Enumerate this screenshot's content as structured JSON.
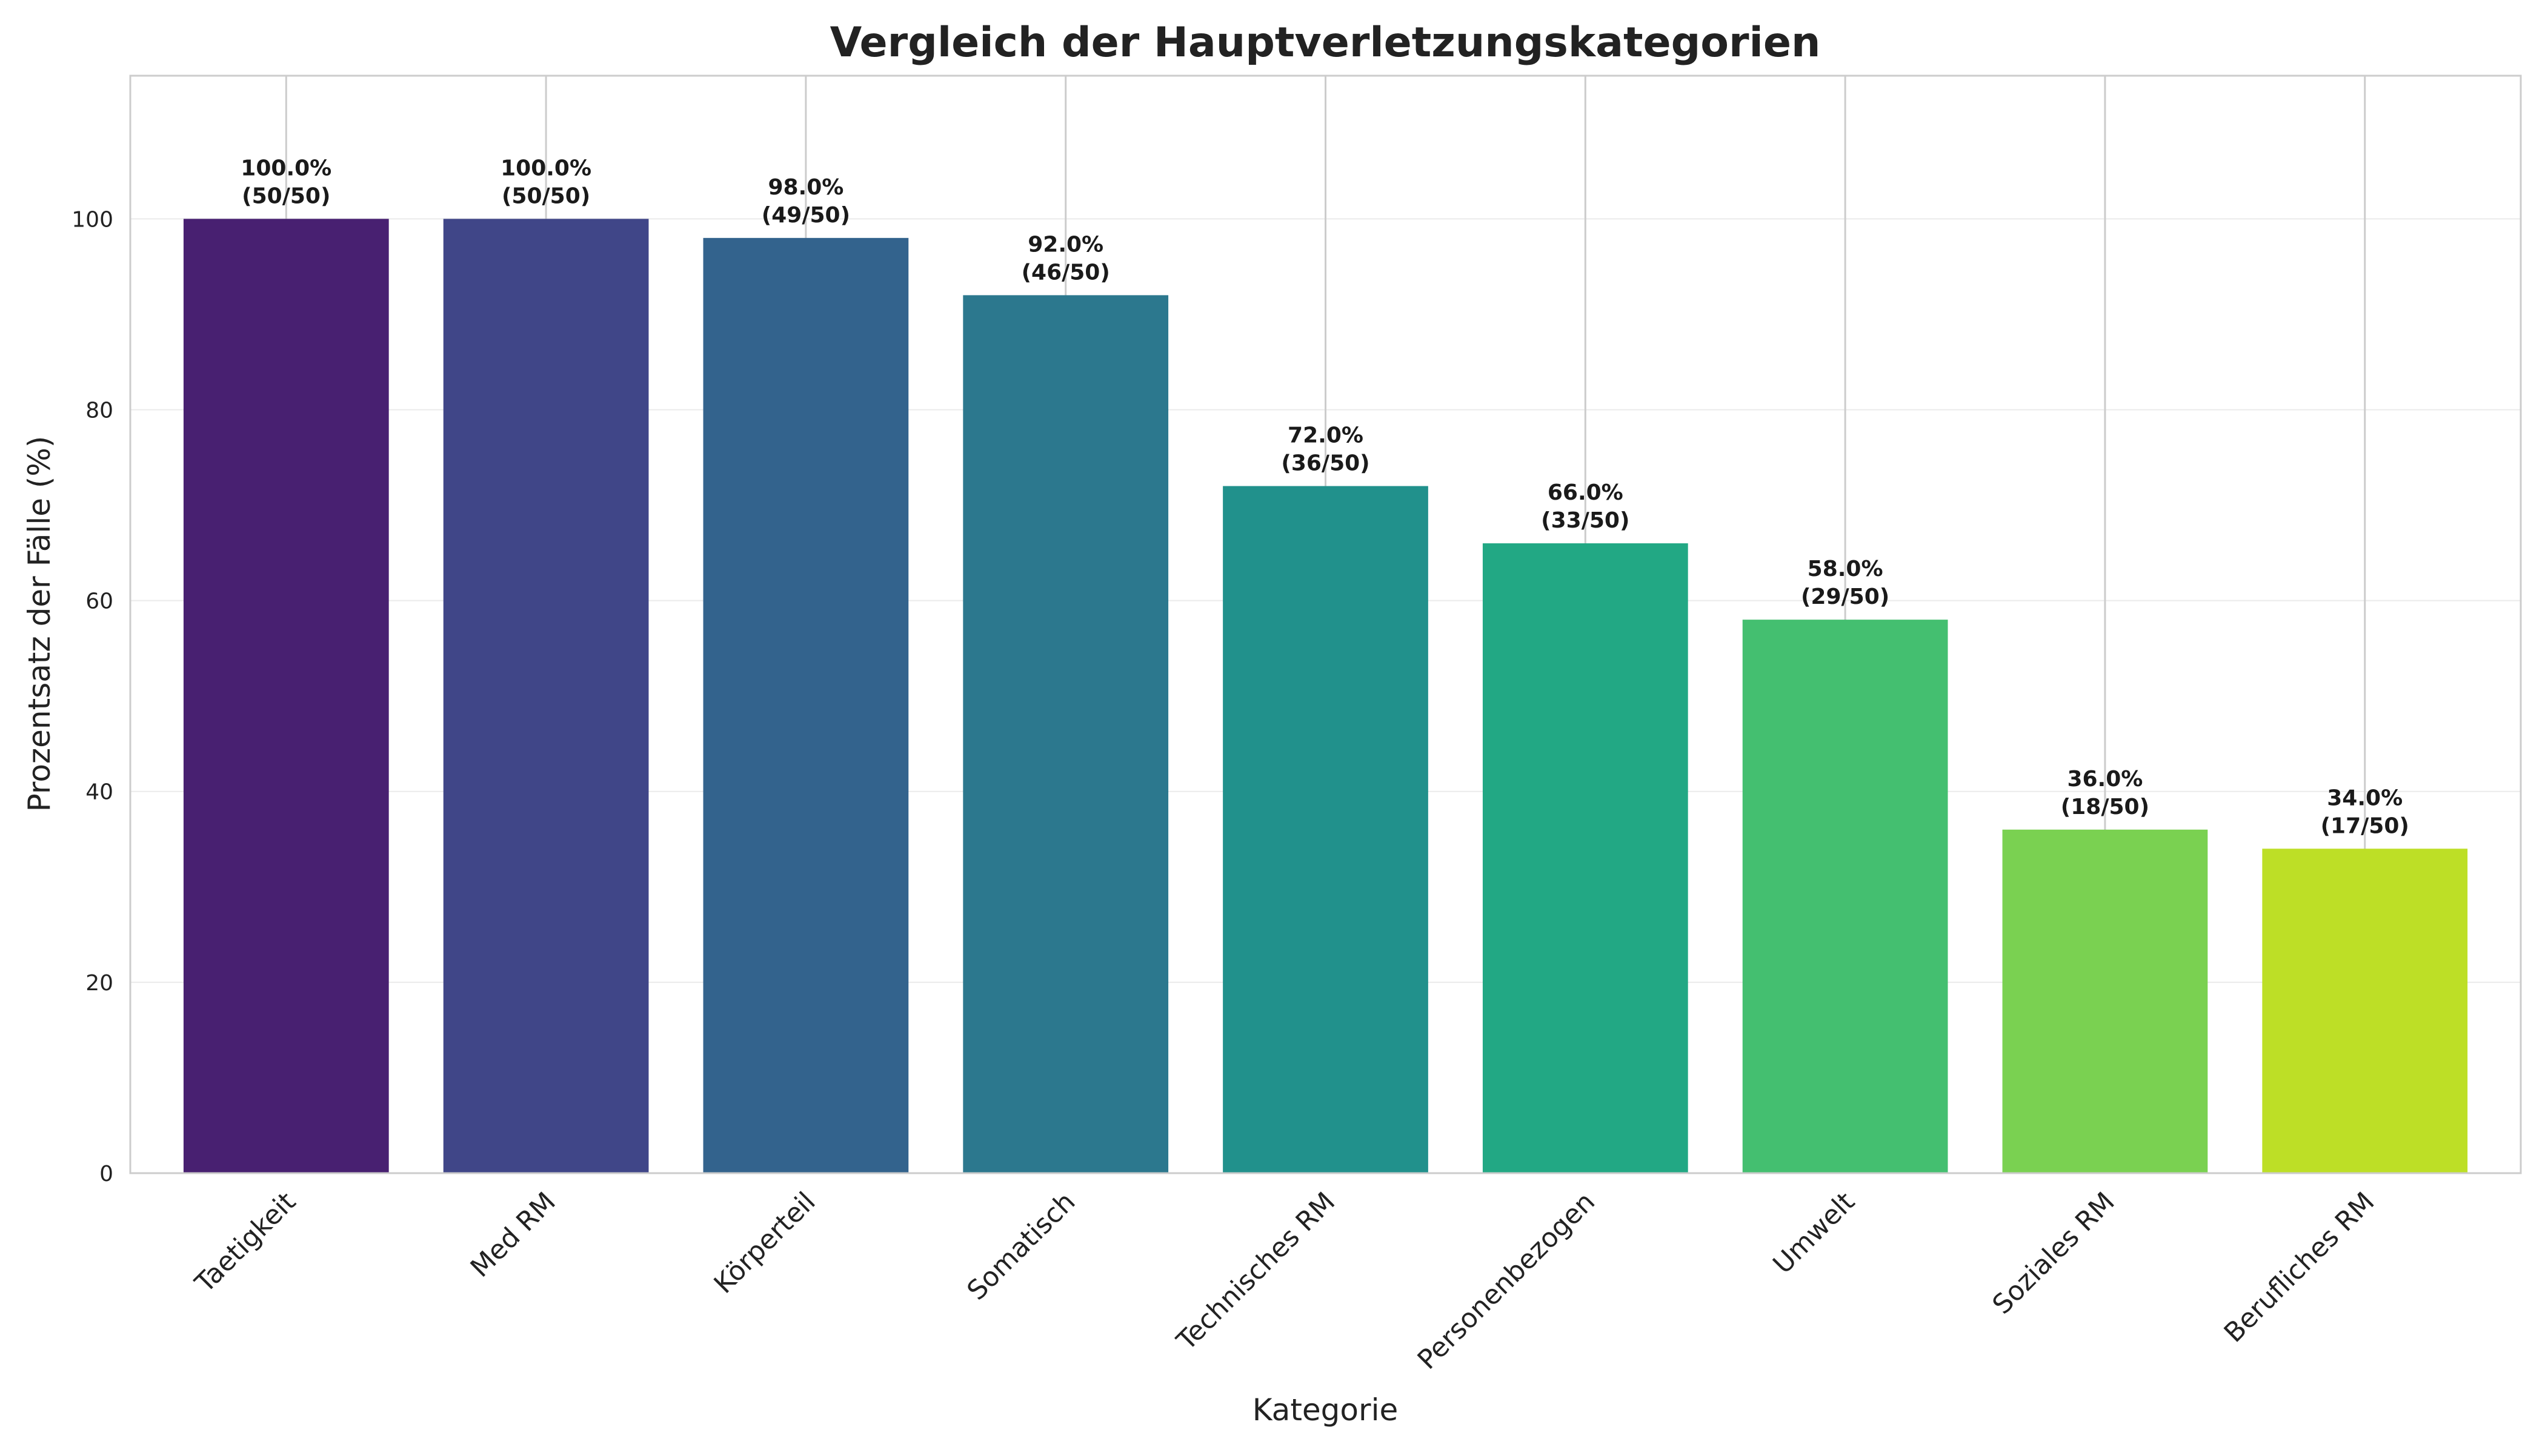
{
  "chart_data": {
    "type": "bar",
    "title": "Vergleich der Hauptverletzungskategorien",
    "xlabel": "Kategorie",
    "ylabel": "Prozentsatz der Fälle (%)",
    "ylim": [
      0,
      115
    ],
    "yticks": [
      0,
      20,
      40,
      60,
      80,
      100
    ],
    "grid": true,
    "categories": [
      "Taetigkeit",
      "Med RM",
      "Körperteil",
      "Somatisch",
      "Technisches RM",
      "Personenbezogen",
      "Umwelt",
      "Soziales RM",
      "Berufliches RM"
    ],
    "values": [
      100.0,
      100.0,
      98.0,
      92.0,
      72.0,
      66.0,
      58.0,
      36.0,
      34.0
    ],
    "counts": [
      "(50/50)",
      "(50/50)",
      "(49/50)",
      "(46/50)",
      "(36/50)",
      "(33/50)",
      "(29/50)",
      "(18/50)",
      "(17/50)"
    ],
    "percent_labels": [
      "100.0%",
      "100.0%",
      "98.0%",
      "92.0%",
      "72.0%",
      "66.0%",
      "58.0%",
      "36.0%",
      "34.0%"
    ],
    "colors": [
      "#482071",
      "#404688",
      "#33638d",
      "#2c788e",
      "#21918c",
      "#22a884",
      "#44bf70",
      "#7ad151",
      "#bddf26"
    ]
  }
}
